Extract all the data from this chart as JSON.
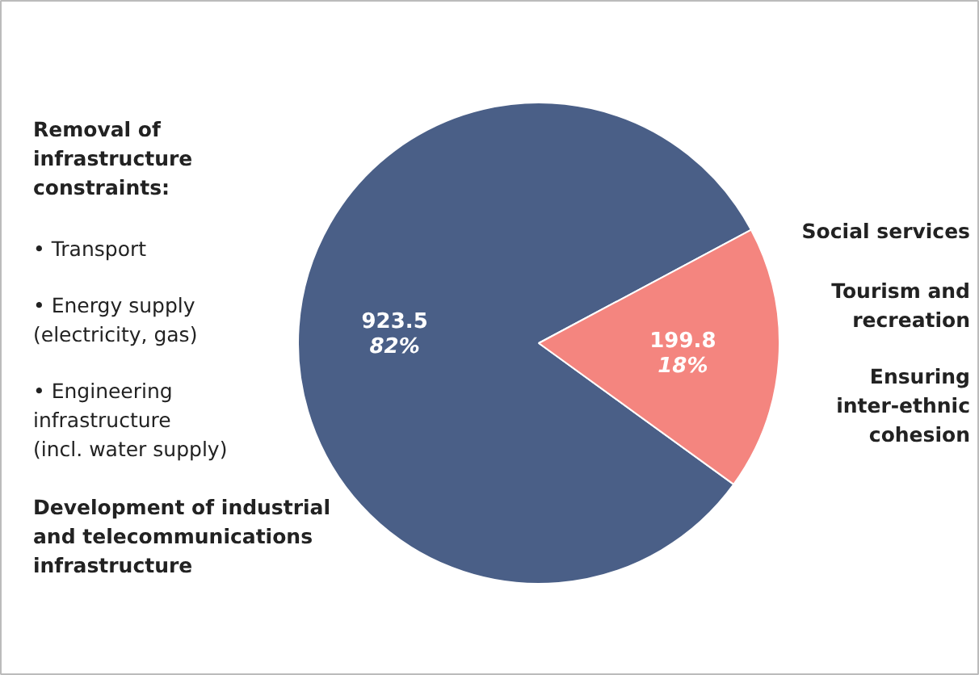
{
  "chart_data": {
    "type": "pie",
    "categories": [
      null,
      null
    ],
    "values": [
      923.5,
      199.8
    ],
    "colors": [
      "#4a5f87",
      "#f4857f"
    ],
    "value_labels": [
      "923.5\n82%",
      "199.8\n18%"
    ],
    "annotations": [
      "Removal of\ninfrastructure\nconstraints:",
      "• Transport",
      "• Energy supply\n(electricity, gas)",
      "• Engineering\ninfrastructure\n(incl. water supply)",
      "Development of industrial\nand telecommunications\ninfrastructure",
      "Social services",
      "Tourism and\nrecreation",
      "Ensuring\ninter-ethnic\ncohesion"
    ]
  }
}
